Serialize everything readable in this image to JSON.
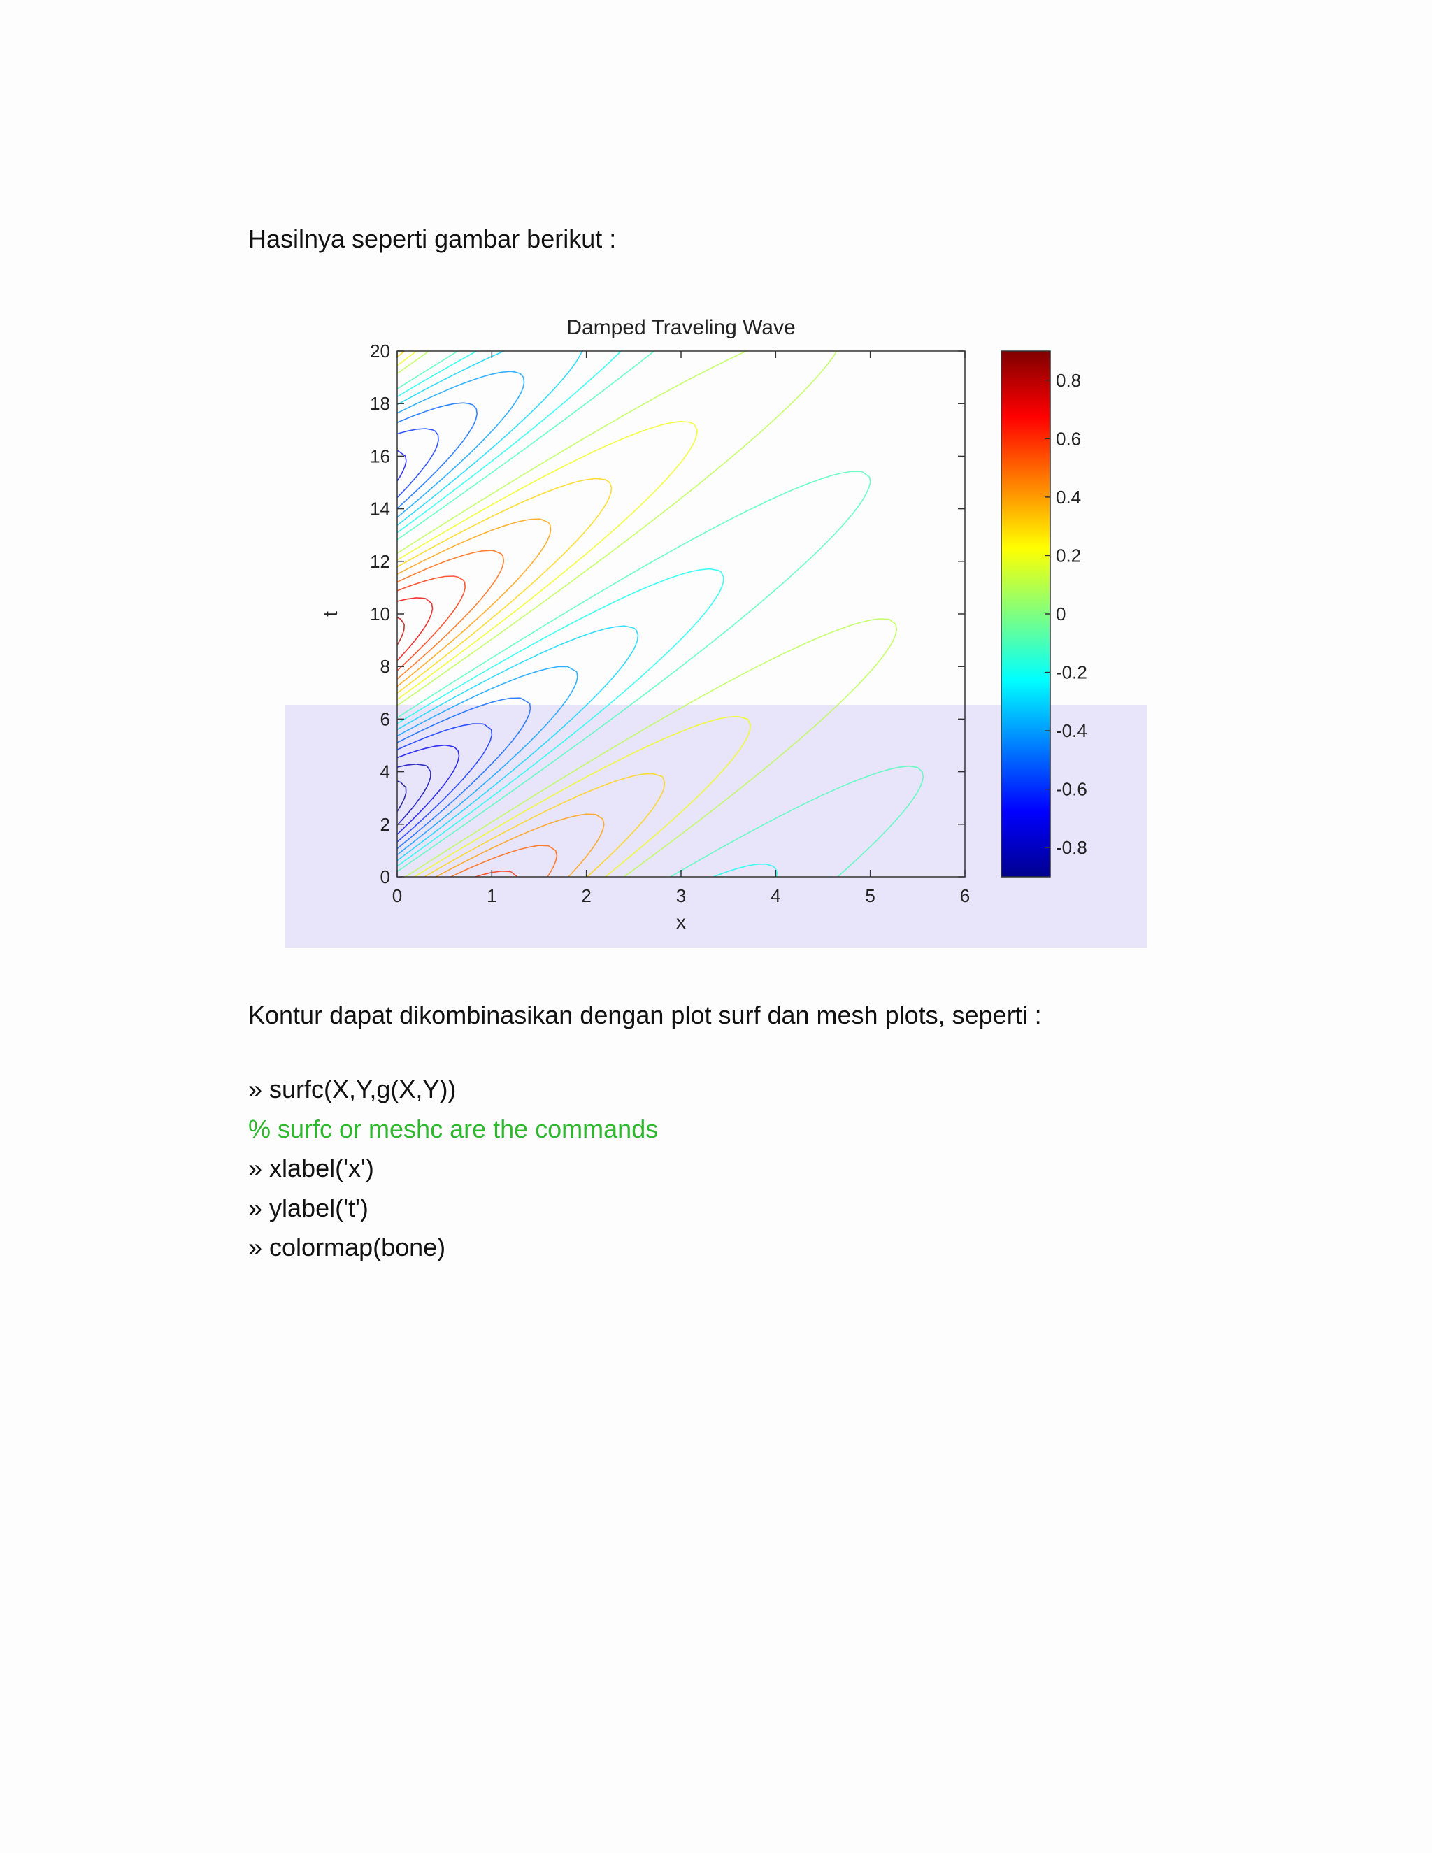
{
  "intro_text": "Hasilnya seperti gambar berikut :",
  "after_text": "Kontur dapat dikombinasikan dengan plot surf dan mesh plots, seperti :",
  "code_lines": [
    {
      "text": "» surfc(X,Y,g(X,Y))",
      "type": "command"
    },
    {
      "text": "% surfc or meshc are the commands",
      "type": "comment"
    },
    {
      "text": "» xlabel('x')",
      "type": "command"
    },
    {
      "text": "» ylabel('t')",
      "type": "command"
    },
    {
      "text": "» colormap(bone)",
      "type": "command"
    }
  ],
  "colors": {
    "comment": "#2db82d",
    "lower_band": "#e8e4fa"
  },
  "chart_data": {
    "type": "contour",
    "title": "Damped Traveling Wave",
    "xlabel": "x",
    "ylabel": "t",
    "xlim": [
      0,
      6
    ],
    "ylim": [
      0,
      20
    ],
    "x_ticks": [
      "0",
      "1",
      "2",
      "3",
      "4",
      "5",
      "6"
    ],
    "y_ticks": [
      "0",
      "2",
      "4",
      "6",
      "8",
      "10",
      "12",
      "14",
      "16",
      "18",
      "20"
    ],
    "colorbar": {
      "colormap": "jet",
      "range": [
        -0.9,
        0.9
      ],
      "ticks": [
        "0.8",
        "0.6",
        "0.4",
        "0.2",
        "0",
        "-0.2",
        "-0.4",
        "-0.6",
        "-0.8"
      ]
    }
  }
}
